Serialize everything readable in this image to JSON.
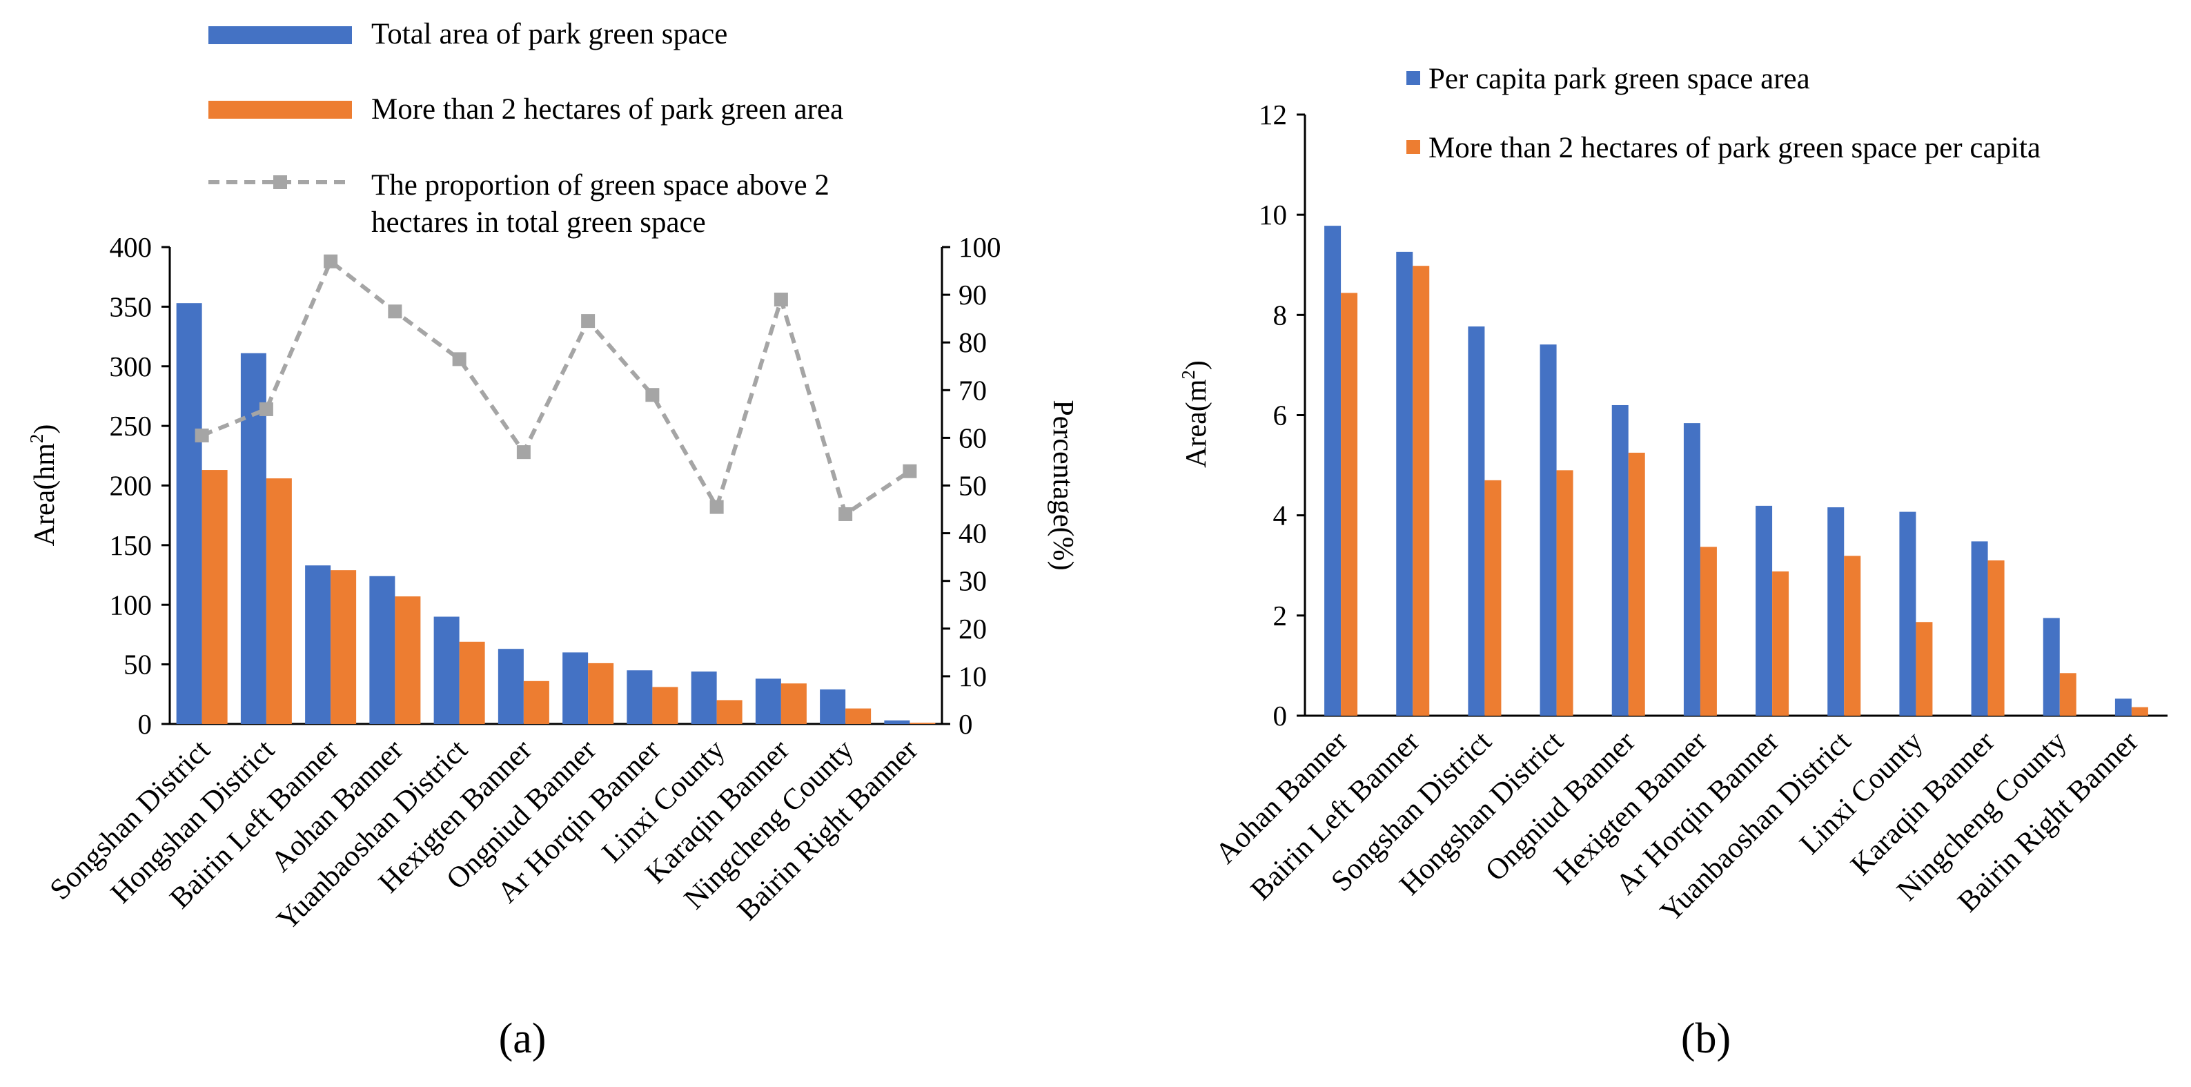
{
  "colors": {
    "blue": "#4472C4",
    "orange": "#ED7D31",
    "grey": "#A5A5A5"
  },
  "chart_data": [
    {
      "type": "bar",
      "panel_label": "(a)",
      "title": "",
      "categories": [
        "Songshan District",
        "Hongshan District",
        "Bairin Left Banner",
        "Aohan Banner",
        "Yuanbaoshan District",
        "Hexigten Banner",
        "Ongniud Banner",
        "Ar Horqin Banner",
        "Linxi County",
        "Karaqin Banner",
        "Ningcheng County",
        "Bairin Right Banner"
      ],
      "series": [
        {
          "name": "Total area of park green space",
          "kind": "bar",
          "axis": "left",
          "color": "#4472C4",
          "values": [
            353,
            311,
            133,
            124,
            90,
            63,
            60,
            45,
            44,
            38,
            29,
            3
          ]
        },
        {
          "name": "More than 2 hectares of park green area",
          "kind": "bar",
          "axis": "left",
          "color": "#ED7D31",
          "values": [
            213,
            206,
            129,
            107,
            69,
            36,
            51,
            31,
            20,
            34,
            13,
            1
          ]
        },
        {
          "name": "The proportion of green space above 2 hectares in total green space",
          "name_lines": [
            "The proportion of green space above 2",
            "hectares in total green space"
          ],
          "kind": "line",
          "axis": "right",
          "color": "#A5A5A5",
          "values": [
            60.5,
            66,
            97,
            86.5,
            76.5,
            57,
            84.5,
            69,
            45.5,
            89,
            44,
            53
          ]
        }
      ],
      "ylabel": "Area(hm²)",
      "ylabel_main": "Area(hm",
      "ylabel_sup": "2",
      "ylabel_close": ")",
      "ylim": [
        0,
        400
      ],
      "yticks": [
        "0",
        "50",
        "100",
        "150",
        "200",
        "250",
        "300",
        "350",
        "400"
      ],
      "y2label": "Percentage(%)",
      "y2lim": [
        0,
        100
      ],
      "y2ticks": [
        "0",
        "10",
        "20",
        "30",
        "40",
        "50",
        "60",
        "70",
        "80",
        "90",
        "100"
      ],
      "legend": "top",
      "grid": false
    },
    {
      "type": "bar",
      "panel_label": "(b)",
      "title": "",
      "categories": [
        "Aohan Banner",
        "Bairin Left Banner",
        "Songshan District",
        "Hongshan District",
        "Ongniud Banner",
        "Hexigten Banner",
        "Ar Horqin Banner",
        "Yuanbaoshan District",
        "Linxi County",
        "Karaqin Banner",
        "Ningcheng County",
        "Bairin Right Banner"
      ],
      "series": [
        {
          "name": "Per capita park green space area",
          "kind": "bar",
          "color": "#4472C4",
          "values": [
            9.78,
            9.26,
            7.77,
            7.41,
            6.2,
            5.84,
            4.19,
            4.16,
            4.07,
            3.48,
            1.95,
            0.34
          ]
        },
        {
          "name": "More than 2 hectares of park green space per capita",
          "kind": "bar",
          "color": "#ED7D31",
          "values": [
            8.44,
            8.98,
            4.7,
            4.9,
            5.25,
            3.37,
            2.88,
            3.19,
            1.87,
            3.1,
            0.85,
            0.17
          ]
        }
      ],
      "ylabel": "Area(m²)",
      "ylabel_main": "Area(m",
      "ylabel_sup": "2",
      "ylabel_close": ")",
      "ylim": [
        0,
        12
      ],
      "yticks": [
        "0",
        "2",
        "4",
        "6",
        "8",
        "10",
        "12"
      ],
      "legend": "top",
      "grid": false
    }
  ]
}
